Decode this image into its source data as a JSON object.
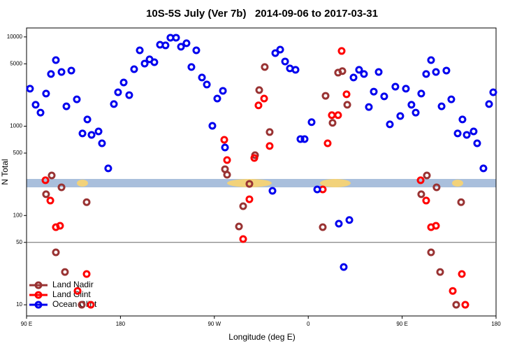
{
  "chart_data": {
    "type": "scatter",
    "title": "10S-5S July (Ver 7b)   2014-09-06 to 2017-03-31",
    "x_label": "Longitude (deg E)",
    "y_label": "N Total",
    "log_y": true,
    "legend": "bottom-left",
    "hline": 50,
    "xlim": [
      90,
      540
    ],
    "ylim": [
      7.5,
      12600
    ],
    "xticks": [
      {
        "value": 90,
        "label": "90 E"
      },
      180,
      {
        "value": 270,
        "label": "90 W"
      },
      {
        "value": 360,
        "label": "0"
      },
      {
        "value": 450,
        "label": "90 E"
      },
      {
        "value": 540,
        "label": "180"
      }
    ],
    "yticks": [
      10,
      50,
      100,
      500,
      1000,
      5000,
      10000
    ],
    "series": [
      {
        "name": "Land Nadir",
        "color": "#993333",
        "x": [
          108.7,
          114.1,
          118.1,
          123.5,
          126.8,
          142.9,
          147.6,
          280.2,
          282.2,
          293.6,
          297.6,
          303.6,
          309,
          313,
          318.3,
          323,
          373.9,
          376.6,
          383.3,
          388.6,
          392.7,
          397.4,
          468.3,
          473.7,
          477.7,
          483,
          486.4,
          501.8,
          506.5
        ],
        "values": [
          173,
          281,
          38.7,
          207,
          23.3,
          10,
          141,
          330,
          286,
          75.3,
          127,
          226,
          474,
          2540,
          4600,
          860,
          74,
          2190,
          1090,
          3980,
          4140,
          1740,
          173,
          281,
          38.7,
          207,
          23.3,
          10,
          141
        ]
      },
      {
        "name": "Land Glint",
        "color": "#ff0000",
        "x": [
          108.1,
          112.8,
          118.1,
          122.1,
          138.9,
          147.6,
          151.6,
          279.5,
          282.2,
          297.6,
          303.6,
          308.3,
          312.3,
          317.7,
          323,
          373.9,
          378.6,
          382.6,
          388.6,
          392,
          396.7,
          467.7,
          473,
          477.7,
          482.4,
          498.5,
          507.2,
          510.5
        ],
        "values": [
          248,
          147,
          74,
          76.7,
          14.3,
          22.1,
          10,
          705,
          418,
          54.5,
          152,
          441,
          1710,
          2040,
          600,
          196,
          644,
          1330,
          1330,
          6960,
          2280,
          248,
          147,
          74,
          76.7,
          14.3,
          22.1,
          10
        ]
      },
      {
        "name": "Ocean Glint",
        "color": "#0000ee",
        "x": [
          93.3,
          98.7,
          103.4,
          108.7,
          113.4,
          118.1,
          123.5,
          128.2,
          132.9,
          138.2,
          143.6,
          148.3,
          152.3,
          159,
          162.3,
          168.3,
          173.7,
          177.7,
          183.1,
          188.4,
          193.1,
          198.5,
          203.2,
          207.9,
          212.5,
          217.9,
          223.2,
          227.9,
          233.3,
          238,
          243.3,
          248,
          252.7,
          258.1,
          262.8,
          268.1,
          272.8,
          278.2,
          280.2,
          325.7,
          328.4,
          333.1,
          337.8,
          342.4,
          347.8,
          352.5,
          356.5,
          363.2,
          368.6,
          389.3,
          394,
          399.4,
          403.4,
          408.7,
          413.4,
          418.1,
          422.8,
          427.5,
          432.8,
          438.2,
          443.5,
          448.2,
          453.6,
          458.9,
          463,
          468.3,
          473,
          477.7,
          482.4,
          487.8,
          492.4,
          497.1,
          503.2,
          507.8,
          511.9,
          518.5,
          521.9,
          527.9,
          533.3,
          537.3
        ],
        "values": [
          2630,
          1740,
          1420,
          2320,
          3840,
          5500,
          4050,
          1670,
          4200,
          2000,
          830,
          1190,
          800,
          875,
          644,
          337,
          1770,
          2400,
          3090,
          2230,
          4350,
          7080,
          5030,
          5610,
          5210,
          8180,
          8040,
          9800,
          9800,
          7760,
          8490,
          4600,
          7080,
          3510,
          2930,
          1010,
          2040,
          2490,
          578,
          189,
          6590,
          7210,
          5310,
          4440,
          4280,
          718,
          718,
          1110,
          196,
          81,
          26.5,
          89,
          3510,
          4280,
          3840,
          1640,
          2440,
          4050,
          2160,
          1050,
          2770,
          1300,
          2630,
          1740,
          1420,
          2320,
          3840,
          5500,
          4050,
          1670,
          4200,
          2000,
          830,
          1190,
          800,
          875,
          644,
          337,
          1770,
          2400
        ]
      }
    ]
  }
}
